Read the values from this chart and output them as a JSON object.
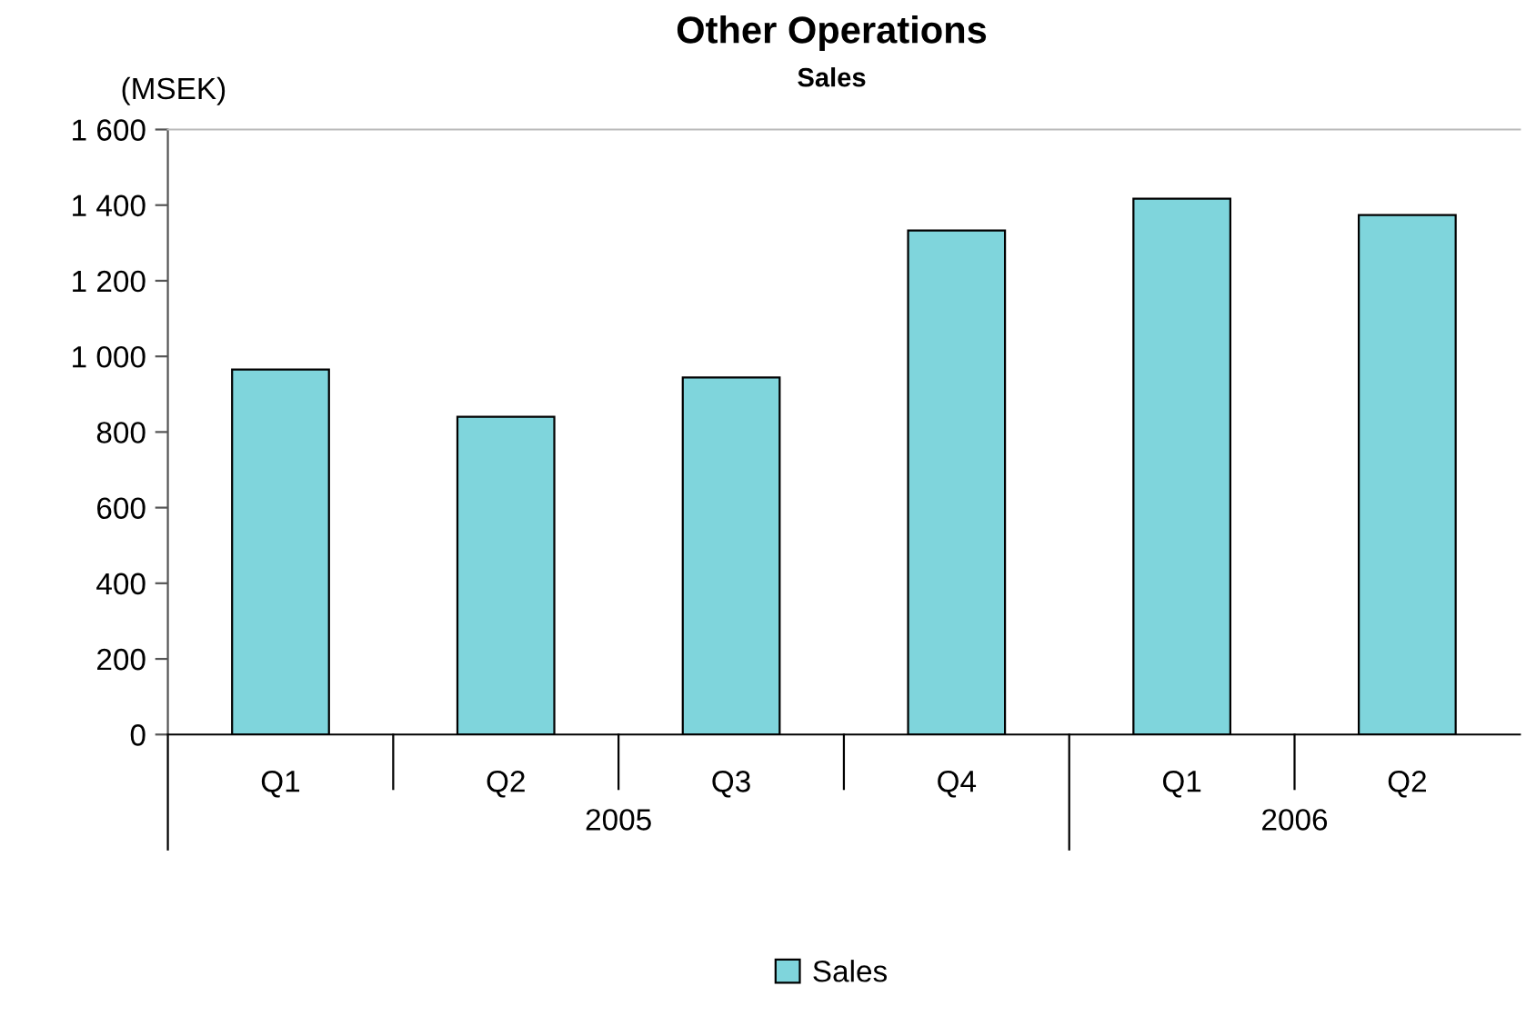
{
  "chart_data": {
    "type": "bar",
    "title": "Other Operations",
    "subtitle": "Sales",
    "ylabel": "(MSEK)",
    "categories": [
      "Q1",
      "Q2",
      "Q3",
      "Q4",
      "Q1",
      "Q2"
    ],
    "series": [
      {
        "name": "Sales",
        "color": "#7fd5dc",
        "values": [
          965,
          840,
          944,
          1333,
          1417,
          1374
        ]
      }
    ],
    "annotations": [
      "2005",
      "2006"
    ],
    "ylim": [
      0,
      1600
    ],
    "yticks": [
      0,
      200,
      400,
      600,
      800,
      {
        "value": 1000,
        "label": "1 000"
      },
      {
        "value": 1200,
        "label": "1 200"
      },
      {
        "value": 1400,
        "label": "1 400"
      },
      {
        "value": 1600,
        "label": "1 600"
      }
    ],
    "grid": false,
    "legend": "bottom"
  }
}
